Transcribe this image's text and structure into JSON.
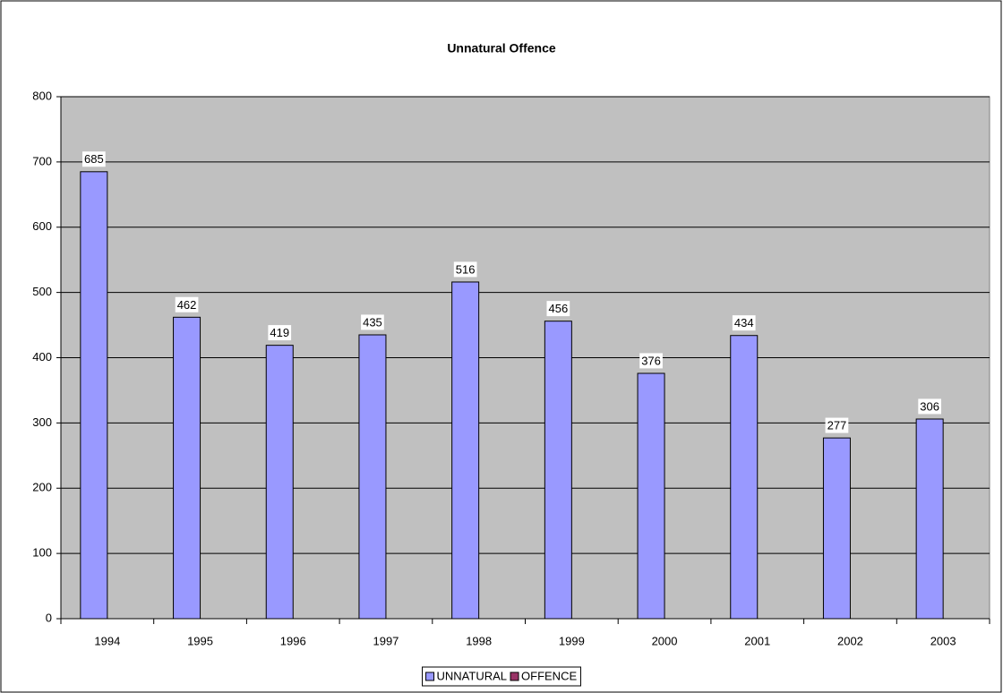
{
  "chart_data": {
    "type": "bar",
    "title": "Unnatural Offence",
    "categories": [
      "1994",
      "1995",
      "1996",
      "1997",
      "1998",
      "1999",
      "2000",
      "2001",
      "2002",
      "2003"
    ],
    "series": [
      {
        "name": "UNNATURAL",
        "color": "#9999ff",
        "values": [
          685,
          462,
          419,
          435,
          516,
          456,
          376,
          434,
          277,
          306
        ]
      },
      {
        "name": "OFFENCE",
        "color": "#993366",
        "values": [
          null,
          null,
          null,
          null,
          null,
          null,
          null,
          null,
          null,
          null
        ]
      }
    ],
    "ylim": [
      0,
      800
    ],
    "yticks": [
      0,
      100,
      200,
      300,
      400,
      500,
      600,
      700,
      800
    ],
    "grid": true,
    "legend": "bottom"
  }
}
